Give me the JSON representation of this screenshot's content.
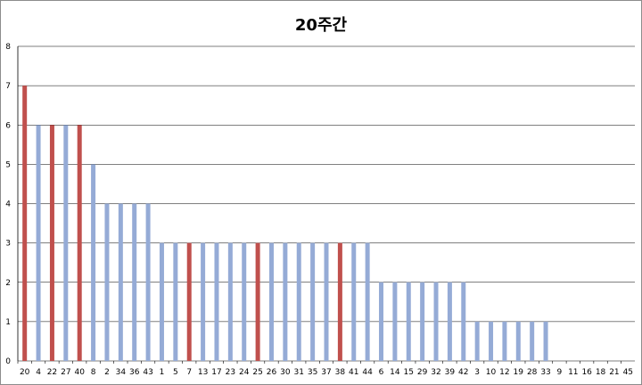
{
  "chart_data": {
    "type": "bar",
    "title": "20주간",
    "xlabel": "",
    "ylabel": "",
    "ylim": [
      0,
      8
    ],
    "yticks": [
      0,
      1,
      2,
      3,
      4,
      5,
      6,
      7,
      8
    ],
    "grid": true,
    "legend": "none",
    "categories": [
      "20",
      "4",
      "22",
      "27",
      "40",
      "8",
      "2",
      "34",
      "36",
      "43",
      "1",
      "5",
      "7",
      "13",
      "17",
      "23",
      "24",
      "25",
      "26",
      "30",
      "31",
      "35",
      "37",
      "38",
      "41",
      "44",
      "6",
      "14",
      "15",
      "29",
      "32",
      "39",
      "42",
      "3",
      "10",
      "12",
      "19",
      "28",
      "33",
      "9",
      "11",
      "16",
      "18",
      "21",
      "45"
    ],
    "values": [
      7,
      6,
      6,
      6,
      6,
      5,
      4,
      4,
      4,
      4,
      3,
      3,
      3,
      3,
      3,
      3,
      3,
      3,
      3,
      3,
      3,
      3,
      3,
      3,
      3,
      3,
      2,
      2,
      2,
      2,
      2,
      2,
      2,
      1,
      1,
      1,
      1,
      1,
      1,
      0,
      0,
      0,
      0,
      0,
      0
    ],
    "highlighted": [
      "20",
      "22",
      "40",
      "7",
      "25",
      "38"
    ],
    "colors": {
      "default": "#95ABD6",
      "highlight": "#C0504D",
      "grid": "#000000"
    }
  }
}
